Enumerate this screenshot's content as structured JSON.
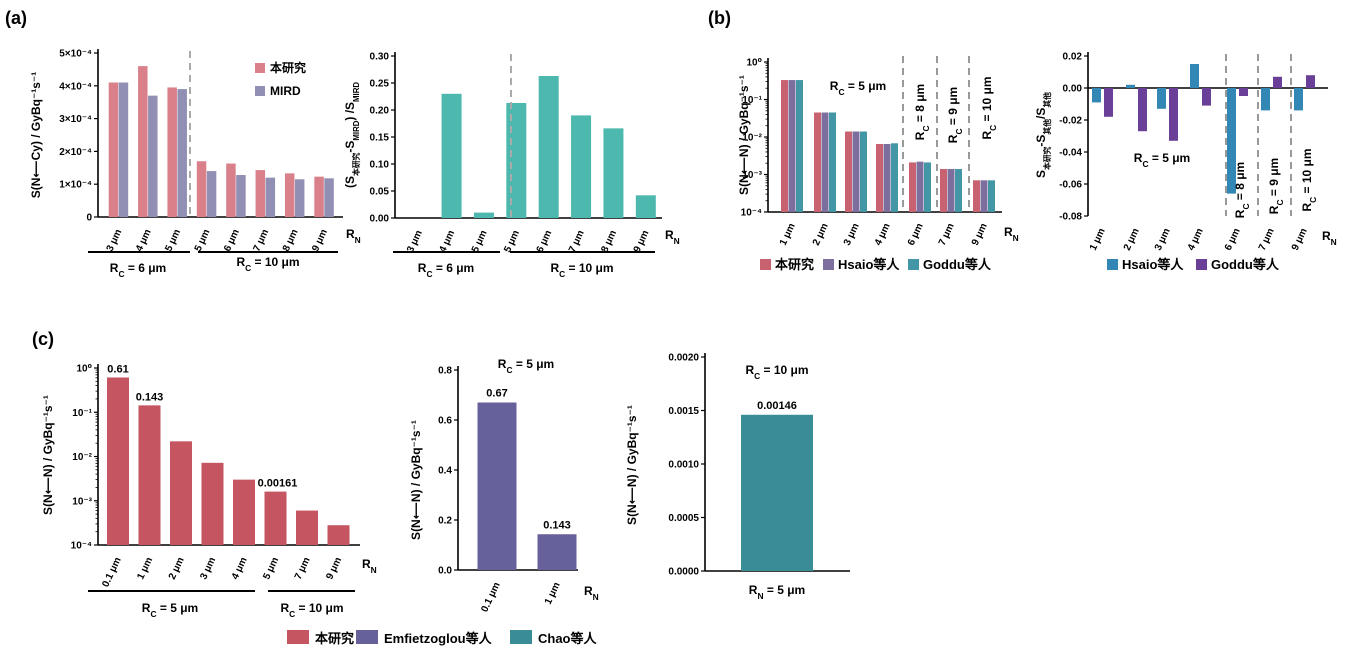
{
  "panels": {
    "a": "(a)",
    "b": "(b)",
    "c": "(c)"
  },
  "colors": {
    "this_study": "#d9808a",
    "mird": "#9190b4",
    "teal_a2": "#4db8ad",
    "red_b": "#c86270",
    "hsiao_b": "#7c6f9e",
    "goddu_b": "#4296a6",
    "hsiao_diff": "#3387b5",
    "goddu_diff": "#6a3f98",
    "red_c": "#c45561",
    "purple_c": "#66619a",
    "teal_c": "#3a8c96"
  },
  "chart_data": [
    {
      "id": "a1",
      "type": "bar",
      "categories": [
        "3 μm",
        "4 μm",
        "5 μm",
        "5 μm",
        "6 μm",
        "7 μm",
        "8 μm",
        "9 μm"
      ],
      "series": [
        {
          "name": "本研究",
          "values": [
            0.00041,
            0.00046,
            0.000395,
            0.00017,
            0.000163,
            0.000143,
            0.000133,
            0.000123
          ]
        },
        {
          "name": "MIRD",
          "values": [
            0.00041,
            0.00037,
            0.00039,
            0.00014,
            0.000128,
            0.00012,
            0.000115,
            0.000118
          ]
        }
      ],
      "ylim": [
        0,
        0.0005
      ],
      "yticks": [
        "0",
        "1×10⁻⁴",
        "2×10⁻⁴",
        "3×10⁻⁴",
        "4×10⁻⁴",
        "5×10⁻⁴"
      ],
      "ylabel": "S(N⟵Cy) / GyBq⁻¹s⁻¹",
      "axis_end": "RN",
      "groups": [
        {
          "label": "RC = 6 μm"
        },
        {
          "label": "RC = 10 μm"
        }
      ],
      "legend": [
        "本研究",
        "MIRD"
      ]
    },
    {
      "id": "a2",
      "type": "bar",
      "categories": [
        "3 μm",
        "4 μm",
        "5 μm",
        "5 μm",
        "6 μm",
        "7 μm",
        "8 μm",
        "9 μm"
      ],
      "values": [
        0,
        0.23,
        0.01,
        0.213,
        0.263,
        0.19,
        0.166,
        0.042
      ],
      "ylim": [
        0,
        0.3
      ],
      "yticks": [
        "0.00",
        "0.05",
        "0.10",
        "0.15",
        "0.20",
        "0.25",
        "0.30"
      ],
      "ylabel": "(S本研究-SMIRD) /SMIRD",
      "axis_end": "RN",
      "groups": [
        {
          "label": "RC = 6 μm"
        },
        {
          "label": "RC = 10 μm"
        }
      ]
    },
    {
      "id": "b1",
      "type": "bar",
      "log_scale": true,
      "categories": [
        "1 μm",
        "2 μm",
        "3 μm",
        "4 μm",
        "6 μm",
        "7 μm",
        "9 μm"
      ],
      "series": [
        {
          "name": "本研究",
          "values": [
            0.33,
            0.045,
            0.014,
            0.0065,
            0.0021,
            0.0014,
            0.0007
          ]
        },
        {
          "name": "Hsaio等人",
          "values": [
            0.33,
            0.045,
            0.014,
            0.0065,
            0.0022,
            0.0014,
            0.0007
          ]
        },
        {
          "name": "Goddu等人",
          "values": [
            0.33,
            0.045,
            0.014,
            0.0068,
            0.0021,
            0.0014,
            0.0007
          ]
        }
      ],
      "ylim": [
        0.0001,
        1
      ],
      "yticks": [
        "10⁻⁴",
        "10⁻³",
        "10⁻²",
        "10⁻¹",
        "10⁰"
      ],
      "ylabel": "S(N⟵N) / GyBq⁻¹s⁻¹",
      "axis_end": "RN",
      "annotations": [
        "RC = 5 μm",
        "RC = 8 μm",
        "RC = 9 μm",
        "RC = 10 μm"
      ],
      "legend": [
        "本研究",
        "Hsaio等人",
        "Goddu等人"
      ]
    },
    {
      "id": "b2",
      "type": "bar",
      "categories": [
        "1 μm",
        "2 μm",
        "3 μm",
        "4 μm",
        "6 μm",
        "7 μm",
        "9 μm"
      ],
      "series": [
        {
          "name": "Hsaio等人",
          "values": [
            -0.009,
            0.002,
            -0.013,
            0.015,
            -0.066,
            -0.014,
            -0.014
          ]
        },
        {
          "name": "Goddu等人",
          "values": [
            -0.018,
            -0.027,
            -0.033,
            -0.011,
            -0.005,
            0.007,
            0.008
          ]
        }
      ],
      "ylim": [
        -0.08,
        0.02
      ],
      "yticks": [
        "-0.08",
        "-0.06",
        "-0.04",
        "-0.02",
        "0.00",
        "0.02"
      ],
      "ylabel": "S本研究-S其他/S其他",
      "axis_end": "RN",
      "annotations": [
        "RC = 5 μm",
        "RC = 8 μm",
        "RC = 9 μm",
        "RC = 10 μm"
      ],
      "legend": [
        "Hsaio等人",
        "Goddu等人"
      ]
    },
    {
      "id": "c1",
      "type": "bar",
      "log_scale": true,
      "categories": [
        "0.1 μm",
        "1 μm",
        "2 μm",
        "3 μm",
        "4 μm",
        "5 μm",
        "7 μm",
        "9 μm"
      ],
      "values": [
        0.61,
        0.143,
        0.022,
        0.0072,
        0.003,
        0.00161,
        0.0006,
        0.00028
      ],
      "data_labels": [
        "0.61",
        "0.143",
        "",
        "",
        "",
        "0.00161",
        "",
        ""
      ],
      "ylim": [
        0.0001,
        1
      ],
      "yticks": [
        "10⁻⁴",
        "10⁻³",
        "10⁻²",
        "10⁻¹",
        "10⁰"
      ],
      "ylabel": "S(N⟵N) / GyBq⁻¹s⁻¹",
      "axis_end": "RN",
      "groups": [
        {
          "label": "RC = 5 μm"
        },
        {
          "label": "RC = 10 μm"
        }
      ]
    },
    {
      "id": "c2",
      "type": "bar",
      "title": "RC = 5 μm",
      "categories": [
        "0.1 μm",
        "1 μm"
      ],
      "values": [
        0.67,
        0.143
      ],
      "data_labels": [
        "0.67",
        "0.143"
      ],
      "ylim": [
        0,
        0.8
      ],
      "yticks": [
        "0.0",
        "0.2",
        "0.4",
        "0.6",
        "0.8"
      ],
      "ylabel": "S(N⟵N) / GyBq⁻¹s⁻¹",
      "axis_end": "RN"
    },
    {
      "id": "c3",
      "type": "bar",
      "title": "RC = 10 μm",
      "categories": [
        ""
      ],
      "values": [
        0.00146
      ],
      "data_labels": [
        "0.00146"
      ],
      "ylim": [
        0,
        0.002
      ],
      "yticks": [
        "0.0000",
        "0.0005",
        "0.0010",
        "0.0015",
        "0.0020"
      ],
      "ylabel": "S(N⟵N) / GyBq⁻¹s⁻¹",
      "xlabel": "RN = 5 μm"
    }
  ],
  "legend_c": [
    "本研究",
    "Emfietzoglou等人",
    "Chao等人"
  ]
}
